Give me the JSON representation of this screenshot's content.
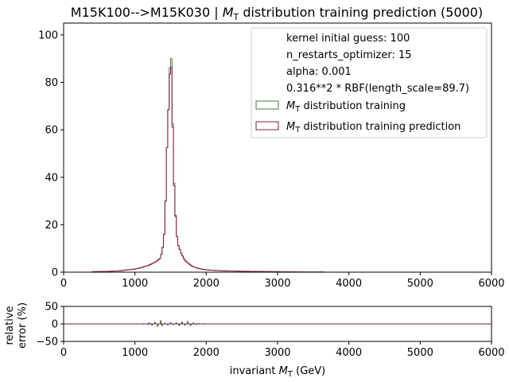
{
  "chart_data": {
    "type": "histogram",
    "title_main": "M15K100-->M15K030 | ",
    "title_math": "M",
    "title_sub": "T",
    "title_rest": " distribution training prediction (5000)",
    "legend": {
      "placement": "upper-right",
      "text_lines": [
        "kernel initial guess: 100",
        "n_restarts_optimizer: 15",
        "alpha: 0.001",
        "0.316**2 * RBF(length_scale=89.7)"
      ],
      "entries": [
        {
          "math": "M",
          "sub": "T",
          "text": " distribution training",
          "color": "#4a7a3a"
        },
        {
          "math": "M",
          "sub": "T",
          "text": " distribution training prediction",
          "color": "#8b1a4a"
        }
      ]
    },
    "x_ticks": [
      "0",
      "1000",
      "2000",
      "3000",
      "4000",
      "5000",
      "6000"
    ],
    "xlim": [
      0,
      6000
    ],
    "main": {
      "ylim": [
        0,
        105
      ],
      "y_ticks": [
        "0",
        "20",
        "40",
        "60",
        "80",
        "100"
      ],
      "bin_width": 20,
      "series": [
        {
          "name": "M_T distribution training",
          "color": "#4a7a3a",
          "points": [
            [
              400,
              0.2
            ],
            [
              600,
              0.3
            ],
            [
              800,
              0.6
            ],
            [
              900,
              1
            ],
            [
              1000,
              1.3
            ],
            [
              1100,
              2
            ],
            [
              1200,
              3
            ],
            [
              1300,
              4.5
            ],
            [
              1360,
              6
            ],
            [
              1400,
              12
            ],
            [
              1420,
              20
            ],
            [
              1440,
              40
            ],
            [
              1460,
              65
            ],
            [
              1480,
              72
            ],
            [
              1500,
              100
            ],
            [
              1520,
              80
            ],
            [
              1540,
              45
            ],
            [
              1560,
              30
            ],
            [
              1580,
              18
            ],
            [
              1600,
              12
            ],
            [
              1650,
              8
            ],
            [
              1700,
              5
            ],
            [
              1800,
              2.5
            ],
            [
              1900,
              1.5
            ],
            [
              2000,
              1
            ],
            [
              2200,
              0.6
            ],
            [
              2500,
              0.4
            ],
            [
              3000,
              0.2
            ],
            [
              3300,
              0.1
            ],
            [
              3650,
              0.1
            ]
          ]
        },
        {
          "name": "M_T distribution training prediction",
          "color": "#8b1a4a",
          "points": [
            [
              400,
              0.2
            ],
            [
              600,
              0.3
            ],
            [
              800,
              0.6
            ],
            [
              900,
              1
            ],
            [
              1000,
              1.3
            ],
            [
              1100,
              2
            ],
            [
              1200,
              3
            ],
            [
              1300,
              4.5
            ],
            [
              1360,
              6
            ],
            [
              1400,
              12
            ],
            [
              1420,
              20
            ],
            [
              1440,
              40
            ],
            [
              1460,
              65
            ],
            [
              1480,
              72
            ],
            [
              1500,
              95
            ],
            [
              1520,
              78
            ],
            [
              1540,
              44
            ],
            [
              1560,
              29
            ],
            [
              1580,
              18
            ],
            [
              1600,
              12
            ],
            [
              1650,
              8
            ],
            [
              1700,
              5
            ],
            [
              1800,
              2.5
            ],
            [
              1900,
              1.5
            ],
            [
              2000,
              1
            ],
            [
              2200,
              0.6
            ],
            [
              2500,
              0.4
            ],
            [
              3000,
              0.2
            ],
            [
              3300,
              0.1
            ],
            [
              3650,
              0.1
            ]
          ]
        }
      ]
    },
    "ratio": {
      "ylabel_lines": [
        "relative",
        "error (%)"
      ],
      "ylim": [
        -50,
        50
      ],
      "y_ticks": [
        "50",
        "0",
        "−50"
      ],
      "reference_line_color": "#8b1a4a",
      "points": [
        [
          1040,
          1
        ],
        [
          1120,
          2
        ],
        [
          1180,
          -2
        ],
        [
          1200,
          4
        ],
        [
          1240,
          -5
        ],
        [
          1280,
          6
        ],
        [
          1320,
          -8
        ],
        [
          1360,
          10
        ],
        [
          1380,
          -6
        ],
        [
          1420,
          3
        ],
        [
          1460,
          -4
        ],
        [
          1500,
          5
        ],
        [
          1540,
          -3
        ],
        [
          1580,
          4
        ],
        [
          1620,
          -6
        ],
        [
          1660,
          7
        ],
        [
          1700,
          -5
        ],
        [
          1740,
          8
        ],
        [
          1780,
          -6
        ],
        [
          1820,
          4
        ],
        [
          1860,
          -3
        ],
        [
          1900,
          2
        ],
        [
          1960,
          -1
        ]
      ]
    },
    "xlabel_prefix": "invariant ",
    "xlabel_math": "M",
    "xlabel_sub": "T",
    "xlabel_suffix": " (GeV)"
  }
}
